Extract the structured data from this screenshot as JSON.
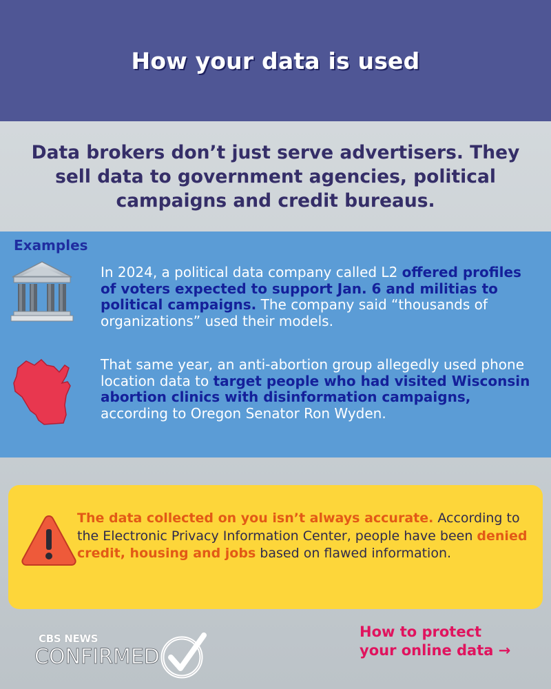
{
  "header": {
    "title": "How your data is used"
  },
  "lead": {
    "text": "Data brokers don’t just serve advertisers. They sell data to government agencies, political campaigns and credit bureaus."
  },
  "examples": {
    "label": "Examples",
    "items": [
      {
        "icon": "government-building-icon",
        "text_before": "In 2024, a political data company called L2 ",
        "highlight": "offered profiles of voters expected to support Jan. 6 and militias to political campaigns.",
        "text_after": " The company said “thousands of organizations” used their models."
      },
      {
        "icon": "wisconsin-map-icon",
        "text_before": "That same year, an anti-abortion group allegedly used phone location data to ",
        "highlight": "target people who had visited Wisconsin abortion clinics with disinformation campaigns,",
        "text_after": " according to Oregon Senator Ron Wyden."
      }
    ]
  },
  "warning": {
    "icon": "warning-triangle-icon",
    "highlight1": "The data collected on you isn’t always accurate.",
    "text1": " According to the Electronic Privacy Information Center, people have been ",
    "highlight2": "denied credit, housing and jobs",
    "text2": " based on flawed information."
  },
  "branding": {
    "line1": "CBS NEWS",
    "line2": "CONFIRMED"
  },
  "cta": {
    "line1": "How to protect",
    "line2": "your online data →"
  },
  "colors": {
    "header_bg": "#4f5695",
    "examples_bg": "#5b9cd6",
    "warning_bg": "#fdd63a",
    "highlight_blue": "#14209a",
    "highlight_orange": "#e25a16",
    "cta": "#e0135e"
  }
}
